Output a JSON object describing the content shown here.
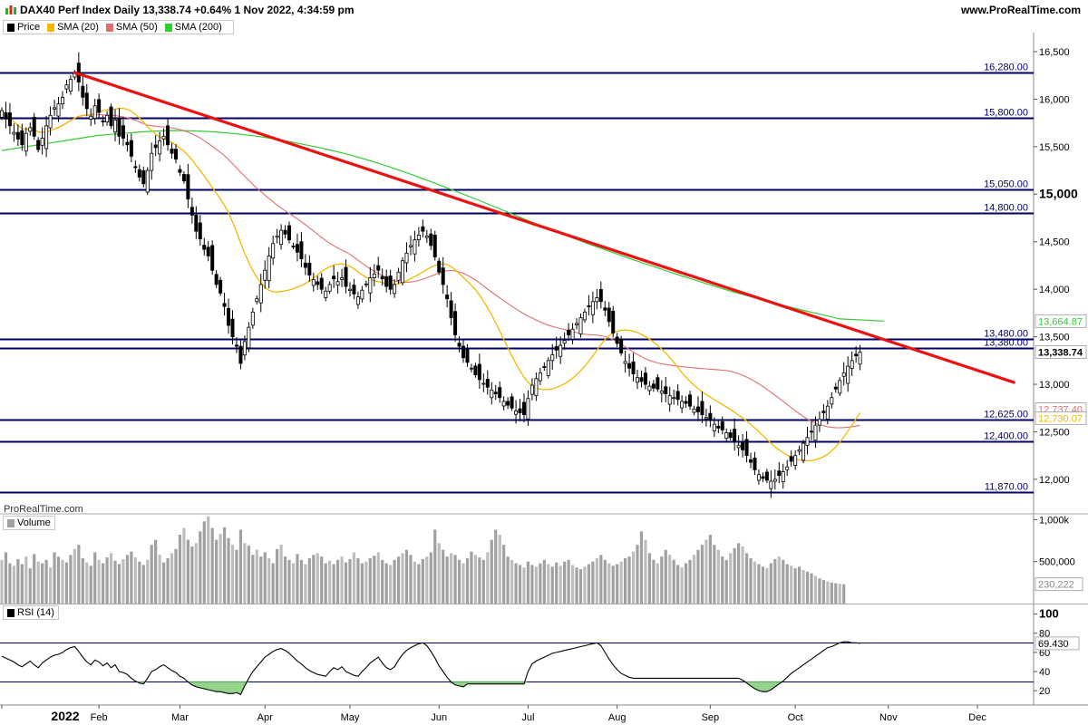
{
  "header": {
    "title": "DAX40 Perf Index Daily 13,338.74 +0.64% 1 Nov 2022, 4:34:59 pm",
    "site": "www.ProRealTime.com",
    "brand": "ProRealTime.com",
    "icon": "bar-chart-icon"
  },
  "colors": {
    "up": "#ffffff",
    "down": "#000000",
    "sma20": "#f5b800",
    "sma50": "#e07070",
    "sma200": "#33cc33",
    "trend": "#ee1111",
    "level": "#000066",
    "volume": "#a0a0a0",
    "rsi": "#000000"
  },
  "chart_data": [
    {
      "type": "candlestick",
      "legend": [
        {
          "label": "Price",
          "color": "#000000"
        },
        {
          "label": "SMA (20)",
          "color": "#f5b800"
        },
        {
          "label": "SMA (50)",
          "color": "#e07070"
        },
        {
          "label": "SMA (200)",
          "color": "#33cc33"
        }
      ],
      "x_labels": [
        "2022",
        "Feb",
        "Mar",
        "Apr",
        "May",
        "Jun",
        "Jul",
        "Aug",
        "Sep",
        "Oct",
        "Nov",
        "Dec"
      ],
      "x_label_days": [
        0,
        24,
        44,
        65,
        86,
        108,
        130,
        152,
        175,
        196,
        219,
        241
      ],
      "y_ticks": [
        "16,500",
        "16,000",
        "15,500",
        "15,000",
        "14,500",
        "14,000",
        "13,500",
        "13,000",
        "12,500",
        "12,000"
      ],
      "y_tick_values": [
        16500,
        16000,
        15500,
        15000,
        14500,
        14000,
        13500,
        13000,
        12500,
        12000
      ],
      "ylim": [
        11780,
        16700
      ],
      "horizontal_levels": [
        {
          "value": 16280,
          "label": "16,280.00"
        },
        {
          "value": 15800,
          "label": "15,800.00"
        },
        {
          "value": 15050,
          "label": "15,050.00"
        },
        {
          "value": 14800,
          "label": "14,800.00"
        },
        {
          "value": 13480,
          "label": "13,480.00"
        },
        {
          "value": 13380,
          "label": "13,380.00"
        },
        {
          "value": 12625,
          "label": "12,625.00"
        },
        {
          "value": 12400,
          "label": "12,400.00"
        },
        {
          "value": 11870,
          "label": "11,870.00"
        }
      ],
      "trendline": {
        "start": {
          "day": 18,
          "value": 16280
        },
        "end": {
          "day": 250,
          "value": 13020
        }
      },
      "price_tags": [
        {
          "value": 13664.87,
          "label": "13,664.87",
          "color": "#33cc33"
        },
        {
          "value": 13338.74,
          "label": "13,338.74",
          "color": "#000000",
          "bold": true
        },
        {
          "value": 12737.4,
          "label": "12,737.40",
          "color": "#e07070"
        },
        {
          "value": 12730.07,
          "label": "12,730.07",
          "color": "#f5b800"
        }
      ],
      "closes": [
        15880,
        15790,
        15720,
        15650,
        15580,
        15520,
        15640,
        15700,
        15610,
        15470,
        15590,
        15720,
        15830,
        15910,
        15950,
        16020,
        16150,
        16210,
        16270,
        16180,
        16020,
        15900,
        15820,
        15930,
        15860,
        15760,
        15830,
        15720,
        15780,
        15610,
        15590,
        15520,
        15400,
        15280,
        15180,
        15110,
        15250,
        15430,
        15490,
        15560,
        15610,
        15520,
        15430,
        15370,
        15230,
        15140,
        14950,
        14780,
        14610,
        14530,
        14420,
        14350,
        14200,
        14050,
        13960,
        13820,
        13620,
        13500,
        13400,
        13220,
        13450,
        13600,
        13760,
        13900,
        14050,
        14200,
        14350,
        14480,
        14560,
        14620,
        14580,
        14520,
        14450,
        14390,
        14320,
        14230,
        14150,
        14100,
        14050,
        14000,
        13980,
        14050,
        14110,
        14080,
        14120,
        14030,
        14000,
        13950,
        13920,
        13990,
        14050,
        14120,
        14160,
        14200,
        14110,
        14030,
        14000,
        14050,
        14180,
        14300,
        14380,
        14460,
        14520,
        14570,
        14610,
        14560,
        14460,
        14340,
        14180,
        14050,
        13900,
        13700,
        13520,
        13400,
        13280,
        13230,
        13170,
        13100,
        13050,
        13010,
        12970,
        12940,
        12900,
        12860,
        12820,
        12780,
        12750,
        12720,
        12700,
        12680,
        12850,
        12990,
        13060,
        13120,
        13180,
        13250,
        13310,
        13360,
        13410,
        13460,
        13520,
        13580,
        13640,
        13700,
        13760,
        13820,
        13870,
        13910,
        13870,
        13780,
        13660,
        13540,
        13430,
        13330,
        13240,
        13170,
        13110,
        13070,
        13030,
        13000,
        12980,
        12960,
        12950,
        12930,
        12900,
        12880,
        12860,
        12840,
        12820,
        12800,
        12770,
        12740,
        12710,
        12680,
        12650,
        12620,
        12580,
        12540,
        12520,
        12490,
        12440,
        12400,
        12360,
        12310,
        12250,
        12180,
        12100,
        12050,
        12010,
        11990,
        11980,
        12000,
        12040,
        12080,
        12130,
        12190,
        12250,
        12310,
        12380,
        12440,
        12500,
        12570,
        12630,
        12700,
        12770,
        12860,
        12950,
        13040,
        13120,
        13190,
        13250,
        13300,
        13338.74
      ],
      "sma200": [
        15460,
        15480,
        15500,
        15520,
        15540,
        15560,
        15580,
        15600,
        15620,
        15630,
        15640,
        15650,
        15660,
        15665,
        15670,
        15668,
        15665,
        15660,
        15650,
        15640,
        15625,
        15610,
        15590,
        15570,
        15545,
        15520,
        15495,
        15465,
        15435,
        15400,
        15365,
        15325,
        15285,
        15240,
        15195,
        15148,
        15100,
        15050,
        15000,
        14950,
        14898,
        14845,
        14792,
        14740,
        14688,
        14638,
        14588,
        14540,
        14492,
        14445,
        14400,
        14355,
        14310,
        14268,
        14225,
        14182,
        14140,
        14100,
        14060,
        14020,
        13980,
        13945,
        13910,
        13875,
        13842,
        13810,
        13778,
        13748,
        13718,
        13688,
        13665
      ],
      "sma200_days": [
        0,
        3,
        6,
        9,
        12,
        15,
        18,
        21,
        24,
        27,
        30,
        33,
        36,
        39,
        42,
        45,
        48,
        51,
        54,
        57,
        60,
        63,
        66,
        69,
        72,
        75,
        78,
        81,
        84,
        87,
        90,
        93,
        96,
        99,
        102,
        105,
        108,
        111,
        114,
        117,
        120,
        123,
        126,
        129,
        132,
        135,
        138,
        141,
        144,
        147,
        150,
        153,
        156,
        159,
        162,
        165,
        168,
        171,
        174,
        177,
        180,
        183,
        186,
        189,
        192,
        195,
        198,
        201,
        204,
        207,
        218
      ],
      "volume_ticks": [
        "1,000k",
        "500,000"
      ],
      "volume_tick_values": [
        1000000,
        500000
      ],
      "volume_legend": "Volume",
      "volume_last": "230,222",
      "volume_last_value": 230222,
      "volumes": [
        520,
        610,
        480,
        450,
        530,
        470,
        560,
        420,
        590,
        500,
        480,
        520,
        430,
        610,
        560,
        520,
        490,
        580,
        650,
        700,
        540,
        490,
        450,
        610,
        520,
        480,
        550,
        600,
        510,
        470,
        530,
        580,
        620,
        550,
        500,
        460,
        520,
        700,
        760,
        580,
        490,
        540,
        600,
        650,
        820,
        900,
        760,
        680,
        720,
        860,
        980,
        1040,
        900,
        760,
        830,
        910,
        780,
        700,
        640,
        880,
        720,
        690,
        580,
        640,
        560,
        610,
        540,
        480,
        650,
        700,
        560,
        520,
        480,
        590,
        520,
        470,
        540,
        580,
        600,
        560,
        480,
        510,
        470,
        520,
        560,
        490,
        530,
        610,
        540,
        480,
        500,
        540,
        570,
        610,
        520,
        480,
        460,
        520,
        560,
        600,
        640,
        580,
        500,
        470,
        530,
        560,
        610,
        880,
        720,
        640,
        560,
        600,
        580,
        520,
        480,
        540,
        620,
        580,
        550,
        520,
        610,
        760,
        880,
        820,
        700,
        560,
        520,
        480,
        460,
        430,
        500,
        460,
        440,
        480,
        520,
        470,
        440,
        490,
        450,
        500,
        520,
        460,
        430,
        410,
        440,
        470,
        500,
        540,
        580,
        520,
        480,
        450,
        470,
        500,
        540,
        560,
        620,
        700,
        860,
        760,
        600,
        520,
        480,
        560,
        640,
        580,
        520,
        460,
        430,
        480,
        520,
        580,
        640,
        700,
        760,
        820,
        700,
        640,
        560,
        520,
        600,
        660,
        720,
        680,
        600,
        540,
        500,
        470,
        440,
        420,
        480,
        530,
        560,
        520,
        470,
        450,
        420,
        440,
        400,
        380,
        360,
        330,
        300,
        280,
        262,
        250,
        242,
        236,
        230
      ],
      "rsi_legend": "RSI (14)",
      "rsi_ticks": [
        "100",
        "80",
        "60",
        "40",
        "20"
      ],
      "rsi_tick_values": [
        100,
        80,
        60,
        40,
        20
      ],
      "rsi_levels": [
        70,
        30
      ],
      "rsi_last": "69.430",
      "rsi_last_value": 69.43,
      "rsi": [
        56,
        54,
        52,
        50,
        47,
        45,
        48,
        51,
        47,
        44,
        49,
        52,
        55,
        57,
        58,
        60,
        63,
        65,
        66,
        61,
        55,
        50,
        47,
        52,
        50,
        46,
        49,
        44,
        47,
        40,
        39,
        37,
        33,
        30,
        28,
        27,
        33,
        40,
        42,
        45,
        47,
        44,
        41,
        39,
        35,
        33,
        29,
        26,
        24,
        23,
        22,
        21,
        20,
        19,
        19,
        18,
        17,
        17,
        18,
        16,
        25,
        33,
        40,
        45,
        50,
        55,
        58,
        61,
        63,
        64,
        62,
        59,
        55,
        51,
        48,
        44,
        41,
        39,
        37,
        36,
        35,
        40,
        44,
        42,
        45,
        40,
        38,
        36,
        35,
        40,
        44,
        49,
        52,
        55,
        49,
        44,
        42,
        45,
        52,
        58,
        62,
        65,
        67,
        69,
        70,
        67,
        61,
        54,
        46,
        40,
        34,
        29,
        26,
        25,
        24,
        27,
        27,
        27,
        27,
        27,
        27,
        27,
        27,
        27,
        27,
        27,
        27,
        27,
        27,
        27,
        40,
        48,
        51,
        53,
        55,
        57,
        59,
        60,
        61,
        62,
        63,
        64,
        65,
        66,
        67,
        68,
        69,
        70,
        67,
        60,
        53,
        47,
        42,
        38,
        36,
        34,
        33,
        33,
        33,
        33,
        33,
        33,
        33,
        33,
        33,
        33,
        33,
        33,
        33,
        33,
        33,
        33,
        33,
        33,
        33,
        33,
        33,
        33,
        33,
        33,
        33,
        33,
        33,
        31,
        28,
        25,
        22,
        20,
        19,
        19,
        21,
        24,
        27,
        30,
        34,
        38,
        41,
        44,
        47,
        50,
        53,
        56,
        59,
        62,
        65,
        66,
        68,
        70,
        71,
        71,
        70,
        70,
        69.43
      ]
    }
  ]
}
